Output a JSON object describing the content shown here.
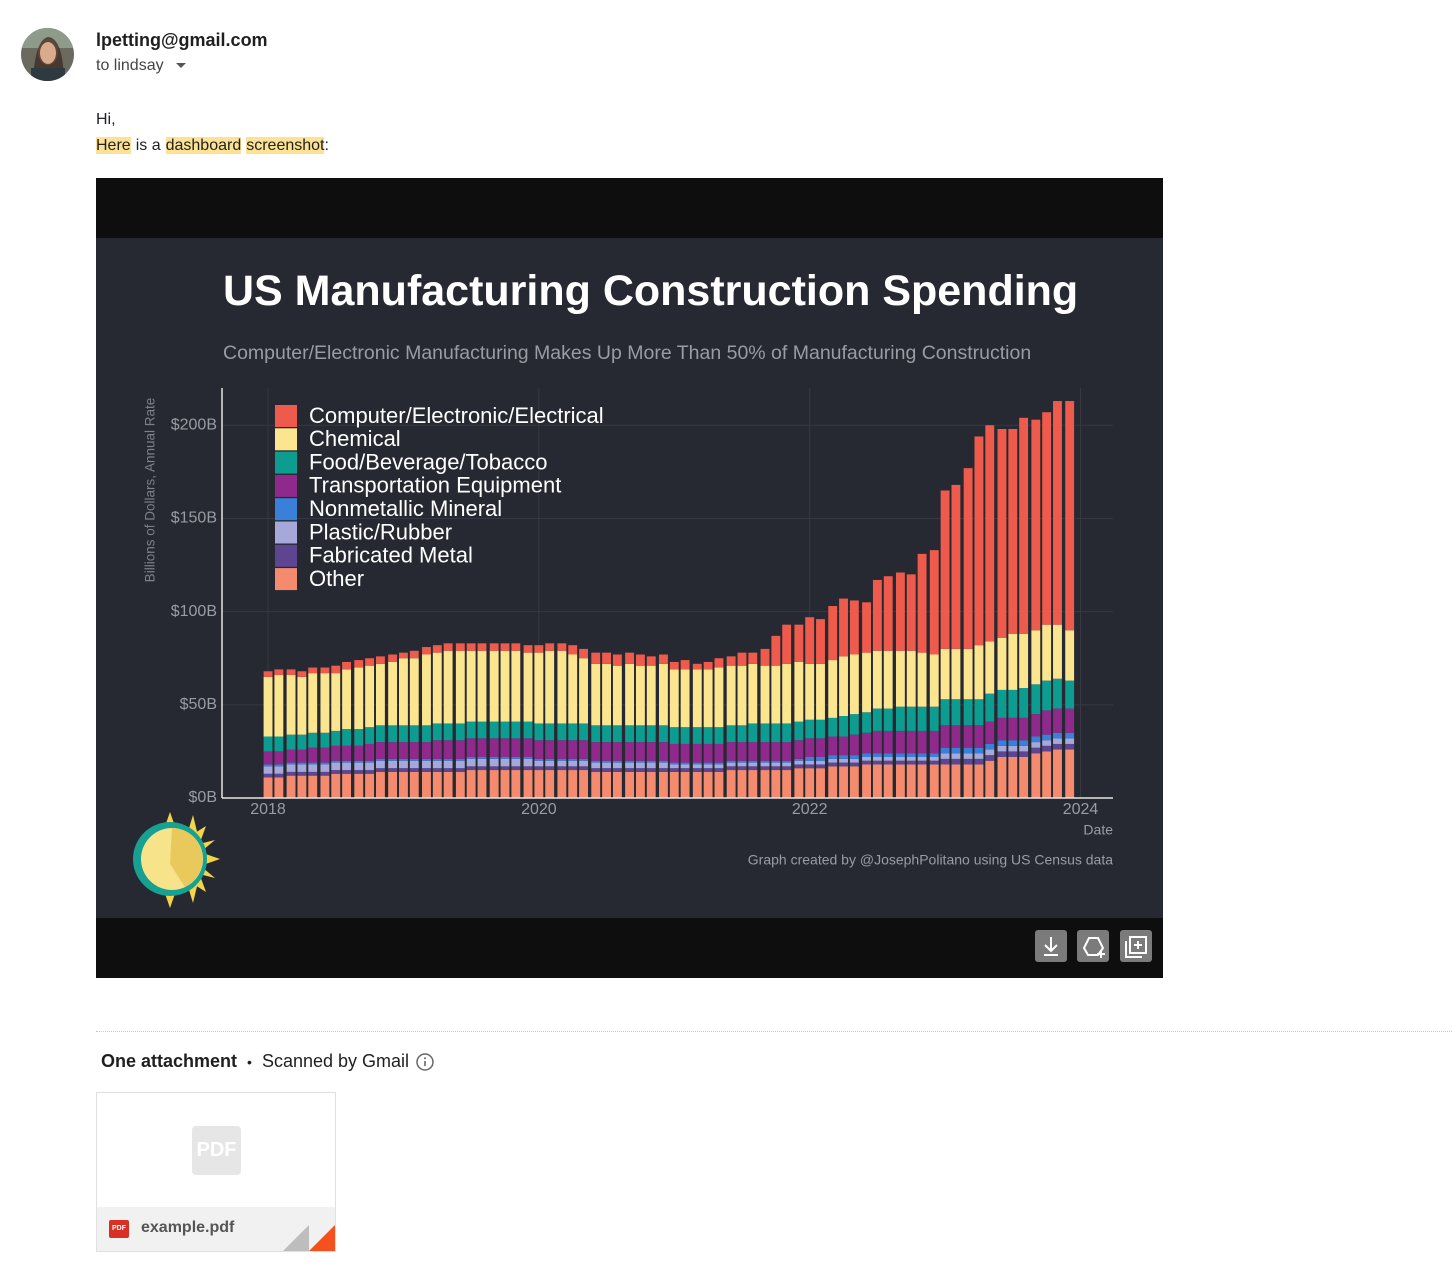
{
  "email": {
    "sender": "lpetting@gmail.com",
    "recipient": "to lindsay",
    "greeting": "Hi,",
    "line": [
      {
        "text": "Here",
        "highlight": true
      },
      {
        "text": "is a",
        "highlight": false
      },
      {
        "text": "dashboard",
        "highlight": true
      },
      {
        "text": "screenshot",
        "highlight": true
      },
      {
        "text": ":",
        "highlight": false
      }
    ]
  },
  "chart_data": {
    "type": "stacked_bar",
    "title": "US Manufacturing Construction Spending",
    "subtitle": "Computer/Electronic Manufacturing Makes Up More Than 50% of Manufacturing Construction",
    "y_label": "Billions of Dollars, Annual Rate",
    "x_label": "Date",
    "credit": "Graph created by @JosephPolitano using US Census data",
    "grid": true,
    "legend": "upper left",
    "xlim": [
      2017.66,
      2024.24
    ],
    "xticks": [
      2018,
      2020,
      2022,
      2024
    ],
    "ylim": [
      0,
      220
    ],
    "yticks": [
      {
        "value": 0,
        "label": "$0B"
      },
      {
        "value": 50,
        "label": "$50B"
      },
      {
        "value": 100,
        "label": "$100B"
      },
      {
        "value": 150,
        "label": "$150B"
      },
      {
        "value": 200,
        "label": "$200B"
      }
    ],
    "x": [
      2018.0,
      2018.08,
      2018.17,
      2018.25,
      2018.33,
      2018.42,
      2018.5,
      2018.58,
      2018.67,
      2018.75,
      2018.83,
      2018.92,
      2019.0,
      2019.08,
      2019.17,
      2019.25,
      2019.33,
      2019.42,
      2019.5,
      2019.58,
      2019.67,
      2019.75,
      2019.83,
      2019.92,
      2020.0,
      2020.08,
      2020.17,
      2020.25,
      2020.33,
      2020.42,
      2020.5,
      2020.58,
      2020.67,
      2020.75,
      2020.83,
      2020.92,
      2021.0,
      2021.08,
      2021.17,
      2021.25,
      2021.33,
      2021.42,
      2021.5,
      2021.58,
      2021.67,
      2021.75,
      2021.83,
      2021.92,
      2022.0,
      2022.08,
      2022.17,
      2022.25,
      2022.33,
      2022.42,
      2022.5,
      2022.58,
      2022.67,
      2022.75,
      2022.83,
      2022.92,
      2023.0,
      2023.08,
      2023.17,
      2023.25,
      2023.33,
      2023.42,
      2023.5,
      2023.58,
      2023.67,
      2023.75,
      2023.83,
      2023.92
    ],
    "series": [
      {
        "name": "Computer/Electronic/Electrical",
        "color": "#ee5a4b",
        "values": [
          3,
          3,
          3,
          3,
          3,
          3,
          4,
          4,
          4,
          4,
          4,
          4,
          3,
          4,
          4,
          4,
          4,
          4,
          4,
          4,
          4,
          4,
          4,
          4,
          4,
          4,
          4,
          5,
          5,
          6,
          6,
          6,
          6,
          6,
          5,
          5,
          4,
          5,
          3,
          4,
          5,
          5,
          7,
          6,
          9,
          16,
          21,
          20,
          25,
          24,
          29,
          31,
          29,
          27,
          38,
          40,
          42,
          41,
          53,
          56,
          85,
          88,
          97,
          112,
          116,
          112,
          110,
          116,
          113,
          114,
          120,
          123
        ]
      },
      {
        "name": "Chemical",
        "color": "#fce58f",
        "values": [
          32,
          33,
          32,
          31,
          32,
          32,
          31,
          32,
          33,
          33,
          33,
          34,
          36,
          36,
          38,
          38,
          39,
          39,
          38,
          38,
          38,
          38,
          38,
          37,
          38,
          39,
          39,
          37,
          35,
          33,
          33,
          32,
          33,
          32,
          32,
          33,
          31,
          31,
          31,
          31,
          32,
          32,
          32,
          32,
          31,
          31,
          32,
          32,
          30,
          30,
          31,
          32,
          32,
          32,
          31,
          31,
          30,
          30,
          29,
          28,
          27,
          27,
          27,
          29,
          28,
          28,
          30,
          29,
          29,
          30,
          29,
          27
        ]
      },
      {
        "name": "Food/Beverage/Tobacco",
        "color": "#0c9c90",
        "values": [
          8,
          8,
          8,
          8,
          8,
          8,
          8,
          9,
          9,
          9,
          9,
          9,
          9,
          9,
          9,
          9,
          9,
          9,
          9,
          9,
          9,
          9,
          9,
          9,
          9,
          9,
          9,
          9,
          9,
          9,
          9,
          9,
          9,
          9,
          9,
          9,
          9,
          9,
          9,
          9,
          9,
          9,
          9,
          10,
          10,
          10,
          10,
          10,
          10,
          10,
          10,
          11,
          11,
          11,
          12,
          12,
          13,
          13,
          13,
          13,
          14,
          14,
          14,
          14,
          15,
          15,
          15,
          16,
          16,
          16,
          16,
          15
        ]
      },
      {
        "name": "Transportation Equipment",
        "color": "#8f2a8c",
        "values": [
          7,
          7,
          7,
          7,
          8,
          8,
          8,
          8,
          8,
          9,
          9,
          9,
          9,
          9,
          9,
          10,
          10,
          10,
          10,
          10,
          10,
          10,
          10,
          10,
          10,
          10,
          10,
          10,
          10,
          10,
          10,
          10,
          10,
          10,
          10,
          10,
          10,
          10,
          10,
          10,
          10,
          10,
          10,
          10,
          10,
          10,
          10,
          10,
          10,
          10,
          10,
          10,
          11,
          11,
          12,
          12,
          12,
          12,
          12,
          12,
          12,
          12,
          12,
          12,
          12,
          12,
          12,
          12,
          12,
          13,
          13,
          13
        ]
      },
      {
        "name": "Nonmetallic Mineral",
        "color": "#3a80d8",
        "values": [
          1,
          1,
          1,
          1,
          1,
          1,
          1,
          1,
          1,
          1,
          1,
          1,
          1,
          1,
          1,
          1,
          1,
          1,
          1,
          1,
          1,
          1,
          1,
          1,
          1,
          1,
          1,
          1,
          1,
          1,
          1,
          1,
          1,
          1,
          1,
          1,
          1,
          1,
          1,
          1,
          1,
          1,
          1,
          1,
          1,
          1,
          1,
          1,
          2,
          2,
          2,
          2,
          2,
          2,
          2,
          2,
          2,
          2,
          2,
          2,
          3,
          3,
          3,
          3,
          3,
          3,
          3,
          3,
          3,
          3,
          3,
          3
        ]
      },
      {
        "name": "Plastic/Rubber",
        "color": "#a6a8da",
        "values": [
          4,
          4,
          4,
          4,
          4,
          4,
          4,
          4,
          4,
          4,
          4,
          4,
          4,
          4,
          4,
          4,
          4,
          4,
          4,
          4,
          4,
          4,
          4,
          4,
          3,
          3,
          3,
          3,
          3,
          3,
          3,
          3,
          3,
          3,
          3,
          3,
          2,
          2,
          2,
          2,
          2,
          2,
          2,
          2,
          2,
          2,
          2,
          2,
          2,
          2,
          2,
          2,
          2,
          2,
          2,
          2,
          2,
          2,
          2,
          2,
          3,
          3,
          3,
          3,
          3,
          3,
          3,
          3,
          3,
          3,
          3,
          3
        ]
      },
      {
        "name": "Fabricated Metal",
        "color": "#5e4592",
        "values": [
          2,
          2,
          2,
          2,
          2,
          2,
          2,
          2,
          2,
          2,
          2,
          2,
          2,
          2,
          2,
          2,
          2,
          2,
          2,
          2,
          2,
          2,
          2,
          2,
          2,
          2,
          2,
          2,
          2,
          2,
          2,
          2,
          2,
          2,
          2,
          2,
          2,
          2,
          2,
          2,
          2,
          2,
          2,
          2,
          2,
          2,
          2,
          2,
          2,
          2,
          2,
          2,
          2,
          2,
          2,
          2,
          2,
          2,
          2,
          2,
          3,
          3,
          3,
          3,
          3,
          3,
          3,
          3,
          3,
          3,
          3,
          3
        ]
      },
      {
        "name": "Other",
        "color": "#f58b6e",
        "values": [
          11,
          11,
          12,
          12,
          12,
          12,
          13,
          13,
          13,
          13,
          14,
          14,
          14,
          14,
          14,
          14,
          14,
          14,
          15,
          15,
          15,
          15,
          15,
          15,
          15,
          15,
          15,
          15,
          15,
          14,
          14,
          14,
          14,
          14,
          14,
          14,
          14,
          14,
          14,
          14,
          14,
          15,
          15,
          15,
          15,
          15,
          15,
          16,
          16,
          16,
          17,
          17,
          17,
          18,
          18,
          18,
          18,
          18,
          18,
          18,
          18,
          18,
          18,
          18,
          20,
          22,
          22,
          22,
          24,
          25,
          26,
          26
        ]
      }
    ]
  },
  "attachments": {
    "heading": "One attachment",
    "separator": "•",
    "scan_note": "Scanned by Gmail",
    "files": [
      {
        "name": "example.pdf",
        "icon_label": "PDF"
      }
    ]
  }
}
